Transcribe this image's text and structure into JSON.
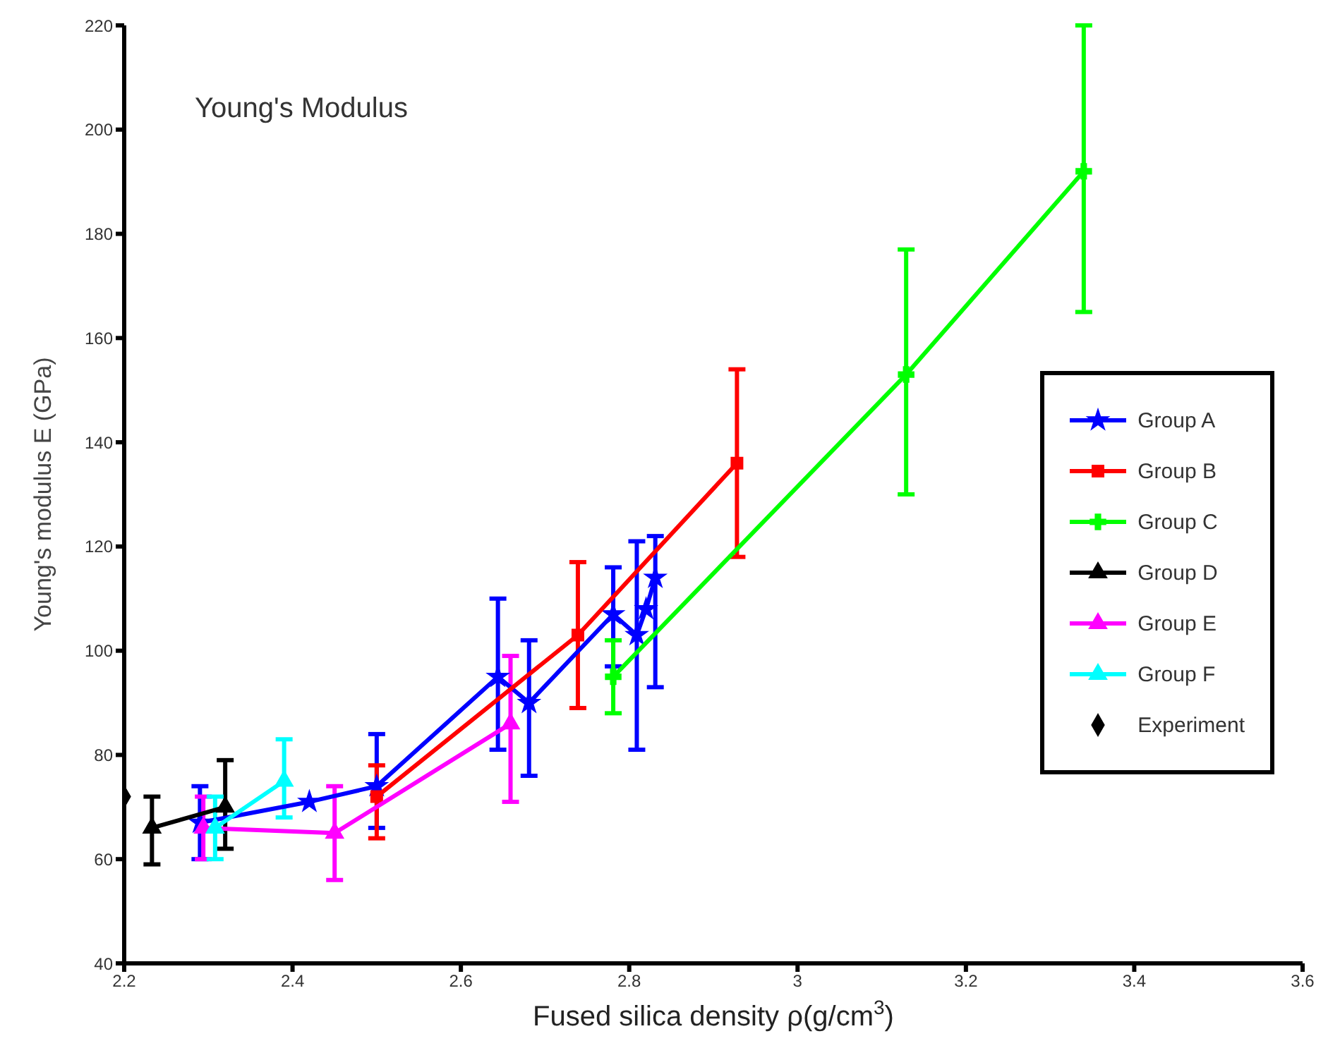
{
  "chart_data": {
    "type": "line",
    "title": "Young's Modulus",
    "xlabel": "Fused silica density ρ(g/cm$^{3}$)",
    "ylabel": "Young's modulus E (GPa)",
    "xlim": [
      2.2,
      3.6
    ],
    "xticks": [
      2.2,
      2.4,
      2.6,
      2.8,
      3,
      3.2,
      3.4,
      3.6
    ],
    "ylim": [
      40,
      220
    ],
    "yticks": [
      40,
      60,
      80,
      100,
      120,
      140,
      160,
      180,
      200,
      220
    ],
    "grid": false,
    "legend": "right",
    "line_style": "solid",
    "series": [
      {
        "name": "Group A",
        "color": "#0000ff",
        "marker": "star",
        "x": [
          2.29,
          2.42,
          2.5,
          2.644,
          2.681,
          2.781,
          2.809,
          2.82,
          2.831
        ],
        "values": [
          67,
          71,
          74,
          95,
          90,
          107,
          103,
          108,
          114
        ],
        "errors": [
          [
            60,
            74
          ],
          null,
          [
            66,
            84
          ],
          [
            81,
            110
          ],
          [
            76,
            102
          ],
          [
            97,
            116
          ],
          [
            81,
            121
          ],
          null,
          [
            93,
            122
          ]
        ]
      },
      {
        "name": "Group B",
        "color": "#ff0000",
        "marker": "square",
        "x": [
          2.5,
          2.739,
          2.928
        ],
        "values": [
          72,
          103,
          136
        ],
        "errors": [
          [
            64,
            78
          ],
          [
            89,
            117
          ],
          [
            118,
            154
          ]
        ]
      },
      {
        "name": "Group C",
        "color": "#00ff00",
        "marker": "cross",
        "x": [
          2.781,
          3.129,
          3.34
        ],
        "values": [
          95,
          153,
          192
        ],
        "errors": [
          [
            88,
            102
          ],
          [
            130,
            177
          ],
          [
            165,
            220
          ]
        ]
      },
      {
        "name": "Group D",
        "color": "#000000",
        "marker": "triangle",
        "x": [
          2.233,
          2.32
        ],
        "values": [
          66,
          70
        ],
        "errors": [
          [
            59,
            72
          ],
          [
            62,
            79
          ]
        ]
      },
      {
        "name": "Group E",
        "color": "#ff00ff",
        "marker": "triangle",
        "x": [
          2.294,
          2.45,
          2.659
        ],
        "values": [
          66,
          65,
          86
        ],
        "errors": [
          [
            60,
            72
          ],
          [
            56,
            74
          ],
          [
            71,
            99
          ]
        ]
      },
      {
        "name": "Group F",
        "color": "#00ffff",
        "marker": "triangle",
        "x": [
          2.308,
          2.39
        ],
        "values": [
          66,
          75
        ],
        "errors": [
          [
            60,
            72
          ],
          [
            68,
            83
          ]
        ]
      },
      {
        "name": "Experiment",
        "type": "scatter",
        "color": "#000000",
        "marker": "diamond",
        "x": [
          2.2
        ],
        "values": [
          72
        ]
      }
    ]
  }
}
